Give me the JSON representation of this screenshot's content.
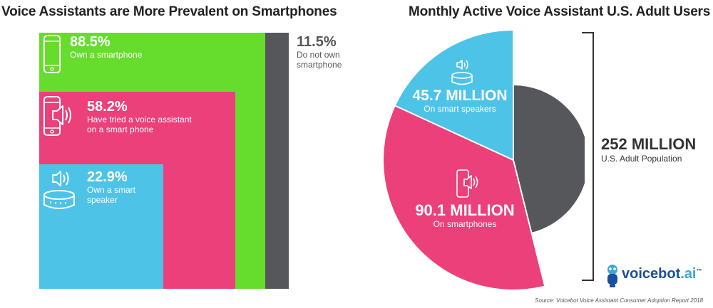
{
  "left_title": "Voice Assistants are More Prevalent on Smartphones",
  "right_title": "Monthly Active Voice Assistant U.S. Adult Users",
  "colors": {
    "green": "#66dd2d",
    "dark": "#55575b",
    "pink": "#ec407a",
    "blue": "#4ec3e8",
    "brand": "#1a4f9c"
  },
  "chart_data": [
    {
      "type": "nested-area",
      "title": "Voice Assistants are More Prevalent on Smartphones",
      "items": [
        {
          "value": 88.5,
          "label": "88.5%",
          "desc": [
            "Own a smartphone"
          ],
          "icon": "smartphone-icon"
        },
        {
          "value": 58.2,
          "label": "58.2%",
          "desc": [
            "Have tried a voice assistant",
            "on a smart phone"
          ],
          "icon": "phone-speaker-icon"
        },
        {
          "value": 22.9,
          "label": "22.9%",
          "desc": [
            "Own a smart",
            "speaker"
          ],
          "icon": "smart-speaker-icon"
        }
      ],
      "remainder": {
        "value": 11.5,
        "label": "11.5%",
        "desc": [
          "Do not own",
          "smartphone"
        ]
      }
    },
    {
      "type": "pie",
      "title": "Monthly Active Voice Assistant U.S. Adult Users",
      "total": {
        "value": 252,
        "label": "252 MILLION",
        "desc": "U.S. Adult Population"
      },
      "slices": [
        {
          "name": "smartphones",
          "value": 90.1,
          "label": "90.1 MILLION",
          "desc": "On smartphones",
          "icon": "phone-speaker-icon"
        },
        {
          "name": "smart-speakers",
          "value": 45.7,
          "label": "45.7 MILLION",
          "desc": "On smart speakers",
          "icon": "smart-speaker-icon"
        }
      ]
    }
  ],
  "brand": {
    "name": "voicebot",
    "suffix": ".ai",
    "tm": "™"
  },
  "source": "Source: Voicebot Voice Assistant Consumer Adoption Report 2018"
}
